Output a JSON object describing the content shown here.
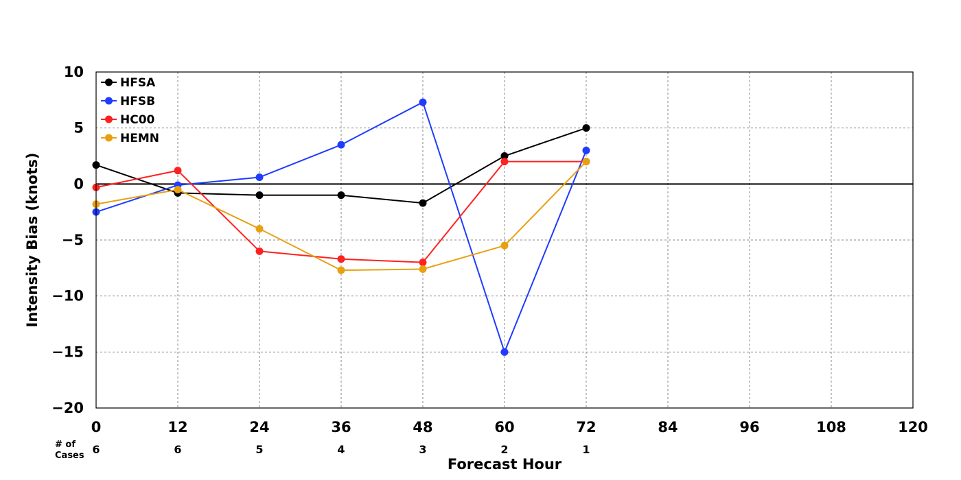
{
  "chart_data": {
    "type": "line",
    "title": "",
    "xlabel": "Forecast Hour",
    "ylabel": "Intensity Bias (knots)",
    "xlim": [
      0,
      120
    ],
    "ylim": [
      -20,
      10
    ],
    "xticks": [
      "0",
      "12",
      "24",
      "36",
      "48",
      "60",
      "72",
      "84",
      "96",
      "108",
      "120"
    ],
    "yticks": [
      "10",
      "5",
      "0",
      "−5",
      "−10",
      "−15",
      "−20"
    ],
    "ytick_values": [
      10,
      5,
      0,
      -5,
      -10,
      -15,
      -20
    ],
    "grid": true,
    "legend_position": "top-left",
    "x": [
      0,
      12,
      24,
      36,
      48,
      60,
      72
    ],
    "series": [
      {
        "name": "HFSA",
        "color": "#000000",
        "values": [
          1.7,
          -0.8,
          -1.0,
          -1.0,
          -1.7,
          2.5,
          5.0
        ]
      },
      {
        "name": "HFSB",
        "color": "#1f3cff",
        "values": [
          -2.5,
          -0.1,
          0.6,
          3.5,
          7.3,
          -15.0,
          3.0
        ]
      },
      {
        "name": "HC00",
        "color": "#ff2020",
        "values": [
          -0.3,
          1.2,
          -6.0,
          -6.7,
          -7.0,
          2.0,
          2.0
        ]
      },
      {
        "name": "HEMN",
        "color": "#e8a010",
        "values": [
          -1.8,
          -0.5,
          -4.0,
          -7.7,
          -7.6,
          -5.5,
          2.0
        ]
      }
    ],
    "cases_label": "# of\nCases",
    "cases_label_line1": "# of",
    "cases_label_line2": "Cases",
    "cases": [
      "6",
      "6",
      "5",
      "4",
      "3",
      "2",
      "1"
    ]
  }
}
